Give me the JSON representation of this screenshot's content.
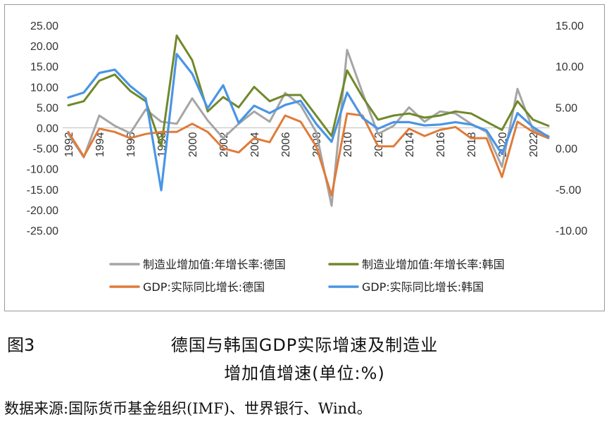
{
  "figure": {
    "label": "图3",
    "title_line1": "德国与韩国GDP实际增速及制造业",
    "title_line2": "增加值增速(单位:%)",
    "source": "数据来源:国际货币基金组织(IMF)、世界银行、Wind。"
  },
  "chart_data": {
    "type": "line",
    "title": "",
    "x": [
      1992,
      1993,
      1994,
      1995,
      1996,
      1997,
      1998,
      1999,
      2000,
      2001,
      2002,
      2003,
      2004,
      2005,
      2006,
      2007,
      2008,
      2009,
      2010,
      2011,
      2012,
      2013,
      2014,
      2015,
      2016,
      2017,
      2018,
      2019,
      2020,
      2021,
      2022,
      2023
    ],
    "x_tick_labels": [
      "1992",
      "1994",
      "1996",
      "1998",
      "2000",
      "2002",
      "2004",
      "2006",
      "2008",
      "2010",
      "2012",
      "2014",
      "2016",
      "2018",
      "2020",
      "2022"
    ],
    "y_left": {
      "lim": [
        -25,
        25
      ],
      "ticks": [
        25,
        20,
        15,
        10,
        5,
        0,
        -5,
        -10,
        -15,
        -20,
        -25
      ],
      "tick_labels": [
        "25.00",
        "20.00",
        "15.00",
        "10.00",
        "5.00",
        "0.00",
        "-5.00",
        "-10.00",
        "-15.00",
        "-20.00",
        "-25.00"
      ]
    },
    "y_right": {
      "lim": [
        -10,
        15
      ],
      "ticks": [
        15,
        10,
        5,
        0,
        -5,
        -10
      ],
      "tick_labels": [
        "15.00",
        "10.00",
        "5.00",
        "0.00",
        "-5.00",
        "-10.00"
      ]
    },
    "grid": false,
    "legend_position": "bottom",
    "series": [
      {
        "name": "制造业增加值:年增长率:德国",
        "axis": "left",
        "color": "#a5a5a5",
        "values": [
          -1.5,
          -7.2,
          3.0,
          0.5,
          -1.3,
          4.5,
          1.5,
          1.0,
          7.2,
          1.8,
          -2.5,
          1.0,
          4.0,
          1.5,
          8.5,
          5.5,
          -1.0,
          -19.0,
          19.0,
          8.5,
          -1.5,
          0.5,
          5.0,
          1.5,
          4.0,
          3.5,
          1.0,
          -1.0,
          -9.5,
          9.5,
          -0.5,
          -2.0
        ]
      },
      {
        "name": "制造业增加值:年增长率:韩国",
        "axis": "left",
        "color": "#70882b",
        "values": [
          5.5,
          6.5,
          11.5,
          13.0,
          9.0,
          6.5,
          -4.5,
          22.5,
          16.5,
          4.0,
          7.5,
          5.0,
          10.0,
          6.5,
          8.0,
          8.0,
          3.0,
          -2.0,
          14.0,
          7.5,
          2.0,
          3.0,
          3.5,
          2.5,
          3.0,
          4.0,
          3.5,
          1.5,
          -0.5,
          6.5,
          2.0,
          0.5
        ]
      },
      {
        "name": "GDP:实际同比增长:德国",
        "axis": "left",
        "color": "#e07b39",
        "values": [
          -1.0,
          -7.0,
          -0.2,
          -1.0,
          -2.5,
          -1.5,
          -1.0,
          -1.0,
          1.0,
          -1.0,
          -5.0,
          -6.0,
          -2.5,
          -3.5,
          3.0,
          1.5,
          -4.5,
          -16.5,
          3.5,
          3.0,
          -4.5,
          -4.5,
          -0.2,
          -2.0,
          -0.5,
          0.2,
          -2.5,
          -2.5,
          -12.0,
          1.5,
          -1.0,
          -2.5
        ]
      },
      {
        "name": "GDP:实际同比增长:韩国",
        "axis": "right",
        "color": "#4a95e6",
        "values": [
          6.2,
          6.8,
          9.2,
          9.6,
          7.6,
          6.1,
          -5.1,
          11.5,
          9.1,
          4.9,
          7.7,
          3.1,
          5.2,
          4.3,
          5.3,
          5.8,
          3.0,
          0.8,
          6.8,
          3.7,
          2.4,
          3.2,
          3.2,
          2.8,
          2.9,
          3.2,
          2.9,
          2.2,
          -0.7,
          4.3,
          2.6,
          1.4
        ]
      }
    ]
  }
}
